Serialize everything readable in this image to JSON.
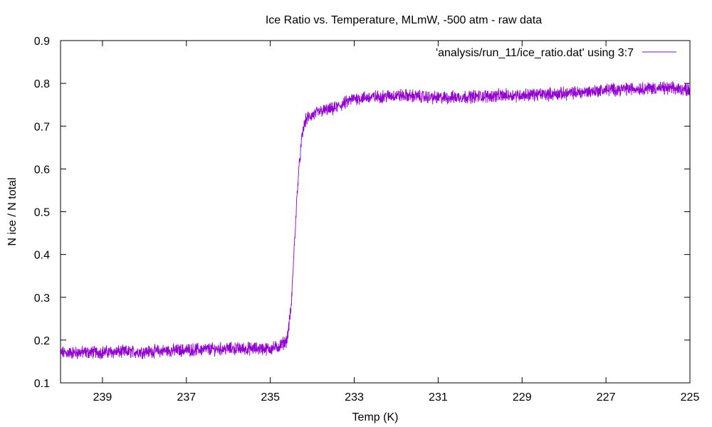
{
  "chart_data": {
    "type": "line",
    "title": "Ice Ratio vs. Temperature, MLmW, -500 atm - raw data",
    "xlabel": "Temp (K)",
    "ylabel": "N ice / N total",
    "xlim": [
      240,
      225
    ],
    "ylim": [
      0.1,
      0.9
    ],
    "x_reversed": true,
    "xticks": [
      "239",
      "237",
      "235",
      "233",
      "231",
      "229",
      "227",
      "225"
    ],
    "xtick_values": [
      239,
      237,
      235,
      233,
      231,
      229,
      227,
      225
    ],
    "yticks": [
      "0.1",
      "0.2",
      "0.3",
      "0.4",
      "0.5",
      "0.6",
      "0.7",
      "0.8",
      "0.9"
    ],
    "ytick_values": [
      0.1,
      0.2,
      0.3,
      0.4,
      0.5,
      0.6,
      0.7,
      0.8,
      0.9
    ],
    "grid": false,
    "legend_position": "top-right",
    "noise_amplitude": 0.012,
    "series": [
      {
        "name": "'analysis/run_11/ice_ratio.dat' using 3:7",
        "color": "#9400d3",
        "x": [
          240.0,
          239.0,
          238.0,
          237.0,
          236.0,
          235.0,
          234.8,
          234.6,
          234.5,
          234.45,
          234.4,
          234.35,
          234.3,
          234.25,
          234.2,
          234.15,
          234.1,
          234.0,
          233.8,
          233.5,
          233.2,
          233.0,
          232.5,
          232.0,
          231.5,
          231.0,
          230.5,
          230.0,
          229.0,
          228.0,
          227.5,
          227.0,
          226.5,
          226.0,
          225.5,
          225.0
        ],
        "y": [
          0.17,
          0.172,
          0.173,
          0.177,
          0.18,
          0.18,
          0.185,
          0.2,
          0.28,
          0.38,
          0.47,
          0.56,
          0.62,
          0.67,
          0.7,
          0.715,
          0.72,
          0.725,
          0.735,
          0.74,
          0.755,
          0.765,
          0.768,
          0.772,
          0.77,
          0.766,
          0.768,
          0.77,
          0.773,
          0.776,
          0.78,
          0.785,
          0.787,
          0.789,
          0.788,
          0.786
        ]
      }
    ]
  }
}
